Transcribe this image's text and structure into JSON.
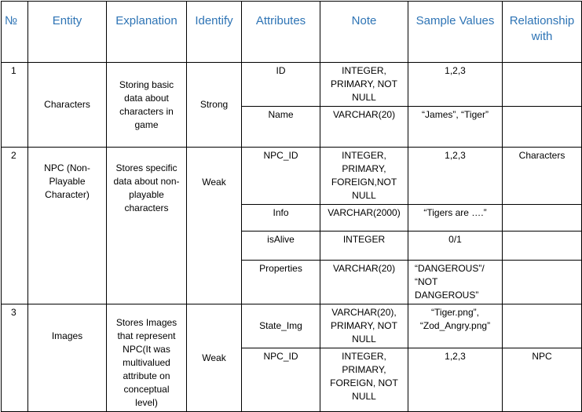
{
  "headers": [
    "№",
    "Entity",
    "Explanation",
    "Identify",
    "Attributes",
    "Note",
    "Sample Values",
    "Relationship with"
  ],
  "entities": [
    {
      "num": "1",
      "entity": "Characters",
      "explanation": "Storing basic data about characters in game",
      "identify": "Strong",
      "rows": [
        {
          "attribute": "ID",
          "note": "INTEGER, PRIMARY, NOT NULL",
          "sample": "1,2,3",
          "relationship": ""
        },
        {
          "attribute": "Name",
          "note": "VARCHAR(20)",
          "sample": "“James”, “Tiger”",
          "relationship": ""
        }
      ]
    },
    {
      "num": "2",
      "entity": "NPC (Non-Playable Character)",
      "explanation": "Stores specific data about non-playable characters",
      "identify": "Weak",
      "rows": [
        {
          "attribute": "NPC_ID",
          "note": "INTEGER, PRIMARY, FOREIGN,NOT NULL",
          "sample": "1,2,3",
          "relationship": "Characters"
        },
        {
          "attribute": "Info",
          "note": "VARCHAR(2000)",
          "sample": "“Tigers are ….”",
          "relationship": ""
        },
        {
          "attribute": "isAlive",
          "note": "INTEGER",
          "sample": "0/1",
          "relationship": ""
        },
        {
          "attribute": "Properties",
          "note": "VARCHAR(20)",
          "sample": "“DANGEROUS”/ “NOT DANGEROUS”",
          "relationship": ""
        }
      ]
    },
    {
      "num": "3",
      "entity": "Images",
      "explanation": "Stores Images that represent NPC(It was multivalued attribute on conceptual level)",
      "identify": "Weak",
      "rows": [
        {
          "attribute": "State_Img",
          "note": "VARCHAR(20), PRIMARY, NOT NULL",
          "sample": "“Tiger.png”, “Zod_Angry.png”",
          "relationship": ""
        },
        {
          "attribute": "NPC_ID",
          "note": "INTEGER, PRIMARY, FOREIGN, NOT NULL",
          "sample": "1,2,3",
          "relationship": "NPC"
        }
      ]
    }
  ]
}
